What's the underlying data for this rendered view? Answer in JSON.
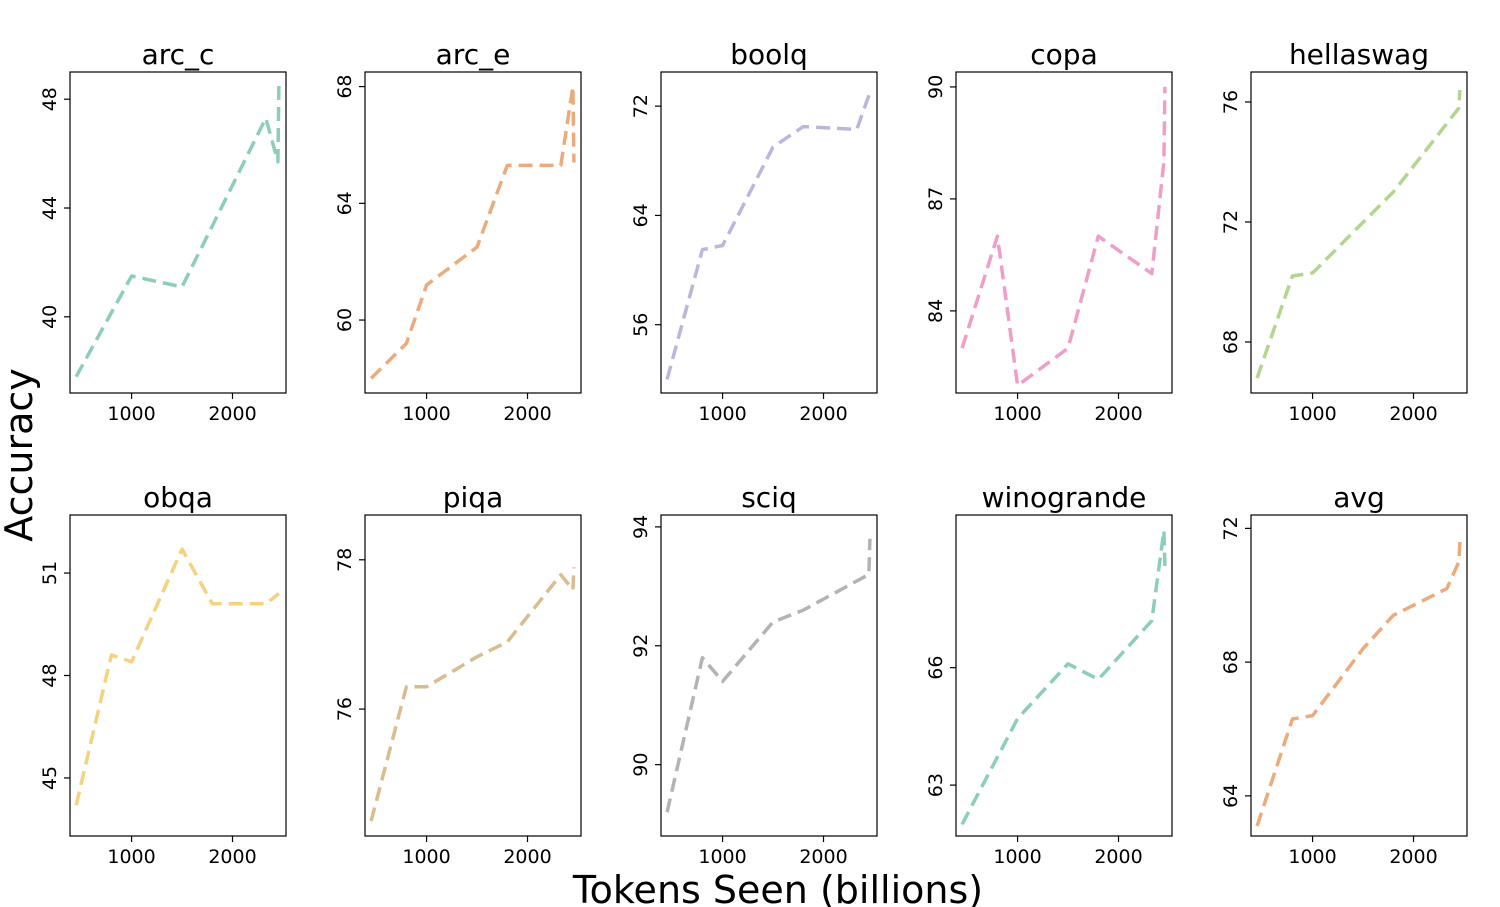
{
  "figure": {
    "xlabel": "Tokens Seen (billions)",
    "ylabel": "Accuracy"
  },
  "chart_data": [
    {
      "type": "line",
      "title": "arc_c",
      "color": "#8dcfb5",
      "xlim": [
        390,
        2530
      ],
      "ylim": [
        37.2,
        49.0
      ],
      "xticks": [
        1000,
        2000
      ],
      "yticks": [
        40,
        44,
        48
      ],
      "x": [
        450,
        1000,
        1500,
        2330,
        2450,
        2460
      ],
      "values": [
        37.8,
        41.5,
        41.1,
        47.3,
        45.7,
        48.5
      ]
    },
    {
      "type": "line",
      "title": "arc_e",
      "color": "#ecab7c",
      "xlim": [
        390,
        2530
      ],
      "ylim": [
        57.5,
        68.5
      ],
      "xticks": [
        1000,
        2000
      ],
      "yticks": [
        60,
        64,
        68
      ],
      "x": [
        450,
        800,
        1000,
        1500,
        1800,
        2330,
        2450,
        2460
      ],
      "values": [
        58.0,
        59.2,
        61.2,
        62.5,
        65.3,
        65.3,
        68.0,
        65.4
      ]
    },
    {
      "type": "line",
      "title": "boolq",
      "color": "#bdb6dc",
      "xlim": [
        390,
        2530
      ],
      "ylim": [
        51.0,
        74.5
      ],
      "xticks": [
        1000,
        2000
      ],
      "yticks": [
        56,
        64,
        72
      ],
      "x": [
        450,
        800,
        1000,
        1500,
        1800,
        2330,
        2460
      ],
      "values": [
        52.0,
        61.5,
        61.8,
        69.0,
        70.5,
        70.3,
        73.0
      ]
    },
    {
      "type": "line",
      "title": "copa",
      "color": "#ee9ec9",
      "xlim": [
        390,
        2530
      ],
      "ylim": [
        81.8,
        90.4
      ],
      "xticks": [
        1000,
        2000
      ],
      "yticks": [
        84,
        87,
        90
      ],
      "x": [
        450,
        800,
        1000,
        1500,
        1800,
        2330,
        2450,
        2460
      ],
      "values": [
        83.0,
        86.0,
        82.0,
        83.0,
        86.0,
        85.0,
        88.0,
        90.0
      ]
    },
    {
      "type": "line",
      "title": "hellaswag",
      "color": "#b4d58f",
      "xlim": [
        390,
        2530
      ],
      "ylim": [
        66.3,
        77.0
      ],
      "xticks": [
        1000,
        2000
      ],
      "yticks": [
        68,
        72,
        76
      ],
      "x": [
        450,
        800,
        1000,
        1800,
        2450,
        2460
      ],
      "values": [
        66.8,
        70.2,
        70.3,
        73.0,
        75.8,
        76.4
      ]
    },
    {
      "type": "line",
      "title": "obqa",
      "color": "#f4d27f",
      "xlim": [
        390,
        2530
      ],
      "ylim": [
        43.3,
        52.7
      ],
      "xticks": [
        1000,
        2000
      ],
      "yticks": [
        45,
        48,
        51
      ],
      "x": [
        450,
        800,
        1000,
        1500,
        1800,
        2330,
        2460
      ],
      "values": [
        44.2,
        48.6,
        48.4,
        51.7,
        50.1,
        50.1,
        50.4
      ]
    },
    {
      "type": "line",
      "title": "piqa",
      "color": "#d7bd8f",
      "xlim": [
        390,
        2530
      ],
      "ylim": [
        74.3,
        78.6
      ],
      "xticks": [
        1000,
        2000
      ],
      "yticks": [
        76,
        78
      ],
      "x": [
        450,
        800,
        1000,
        1500,
        1800,
        2330,
        2450,
        2460
      ],
      "values": [
        74.5,
        76.3,
        76.3,
        76.7,
        76.9,
        77.8,
        77.6,
        77.9
      ]
    },
    {
      "type": "line",
      "title": "sciq",
      "color": "#b3b3b3",
      "xlim": [
        390,
        2530
      ],
      "ylim": [
        88.8,
        94.2
      ],
      "xticks": [
        1000,
        2000
      ],
      "yticks": [
        90,
        92,
        94
      ],
      "x": [
        450,
        800,
        1000,
        1500,
        1800,
        2450,
        2460
      ],
      "values": [
        89.2,
        91.8,
        91.4,
        92.4,
        92.6,
        93.2,
        93.8
      ]
    },
    {
      "type": "line",
      "title": "winogrande",
      "color": "#8dcfb5",
      "xlim": [
        390,
        2530
      ],
      "ylim": [
        61.7,
        69.9
      ],
      "xticks": [
        1000,
        2000
      ],
      "yticks": [
        63,
        66
      ],
      "x": [
        450,
        1000,
        1500,
        1800,
        2330,
        2450,
        2460
      ],
      "values": [
        62.0,
        64.7,
        66.1,
        65.7,
        67.2,
        69.5,
        68.6
      ]
    },
    {
      "type": "line",
      "title": "avg",
      "color": "#ecab7c",
      "xlim": [
        390,
        2530
      ],
      "ylim": [
        62.8,
        72.4
      ],
      "xticks": [
        1000,
        2000
      ],
      "yticks": [
        64,
        68,
        72
      ],
      "x": [
        450,
        800,
        1000,
        1500,
        1800,
        2330,
        2450,
        2460
      ],
      "values": [
        63.1,
        66.3,
        66.4,
        68.4,
        69.4,
        70.2,
        71.0,
        71.6
      ]
    }
  ]
}
